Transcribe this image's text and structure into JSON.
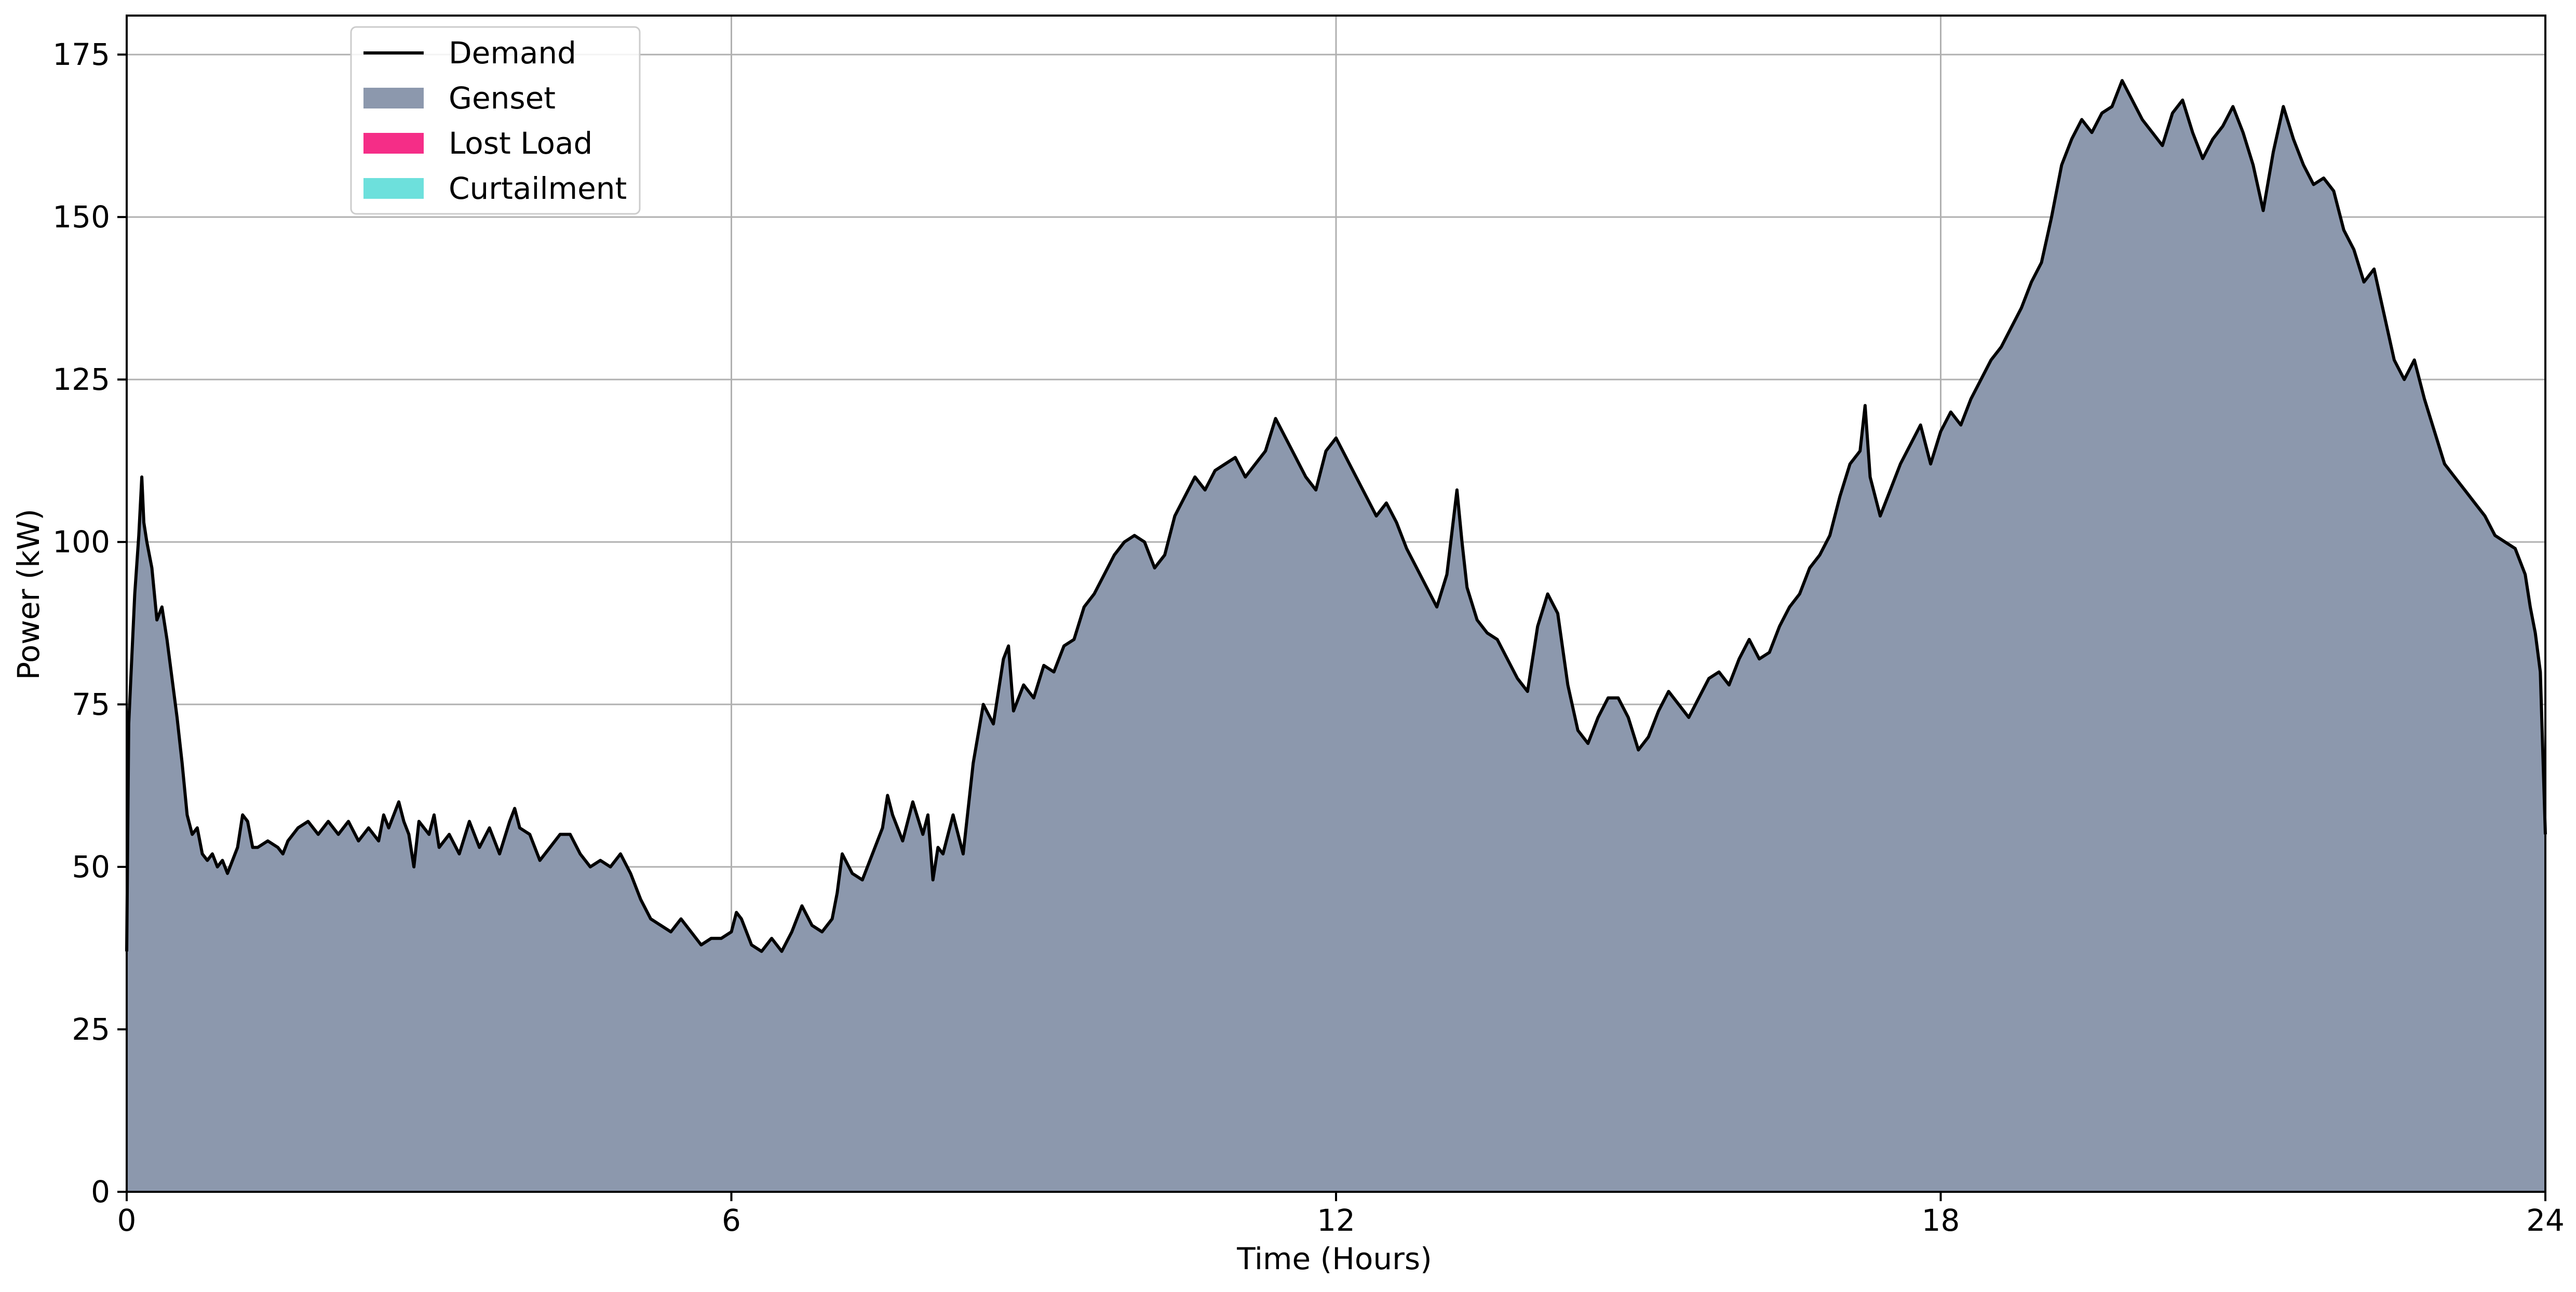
{
  "chart_data": {
    "type": "area",
    "title": "",
    "xlabel": "Time (Hours)",
    "ylabel": "Power (kW)",
    "xlim": [
      0,
      24
    ],
    "ylim": [
      0,
      181
    ],
    "x_ticks": [
      0,
      6,
      12,
      18,
      24
    ],
    "y_ticks": [
      0,
      25,
      50,
      75,
      100,
      125,
      150,
      175
    ],
    "grid": true,
    "legend_position": "upper-left",
    "series": [
      {
        "name": "Demand",
        "kind": "line",
        "color": "#000000"
      },
      {
        "name": "Genset",
        "kind": "area",
        "color": "#8c98ad"
      },
      {
        "name": "Lost Load",
        "kind": "area",
        "color": "#f52d87"
      },
      {
        "name": "Curtailment",
        "kind": "area",
        "color": "#6de0dc"
      }
    ],
    "demand_points": [
      [
        0,
        37
      ],
      [
        0.02,
        72
      ],
      [
        0.05,
        82
      ],
      [
        0.08,
        92
      ],
      [
        0.12,
        101
      ],
      [
        0.15,
        110
      ],
      [
        0.17,
        103
      ],
      [
        0.2,
        100
      ],
      [
        0.25,
        96
      ],
      [
        0.3,
        88
      ],
      [
        0.35,
        90
      ],
      [
        0.4,
        85
      ],
      [
        0.45,
        79
      ],
      [
        0.5,
        73
      ],
      [
        0.55,
        66
      ],
      [
        0.6,
        58
      ],
      [
        0.65,
        55
      ],
      [
        0.7,
        56
      ],
      [
        0.75,
        52
      ],
      [
        0.8,
        51
      ],
      [
        0.85,
        52
      ],
      [
        0.9,
        50
      ],
      [
        0.95,
        51
      ],
      [
        1.0,
        49
      ],
      [
        1.05,
        51
      ],
      [
        1.1,
        53
      ],
      [
        1.15,
        58
      ],
      [
        1.2,
        57
      ],
      [
        1.25,
        53
      ],
      [
        1.3,
        53
      ],
      [
        1.4,
        54
      ],
      [
        1.5,
        53
      ],
      [
        1.55,
        52
      ],
      [
        1.6,
        54
      ],
      [
        1.7,
        56
      ],
      [
        1.8,
        57
      ],
      [
        1.9,
        55
      ],
      [
        2.0,
        57
      ],
      [
        2.1,
        55
      ],
      [
        2.2,
        57
      ],
      [
        2.3,
        54
      ],
      [
        2.4,
        56
      ],
      [
        2.5,
        54
      ],
      [
        2.55,
        58
      ],
      [
        2.6,
        56
      ],
      [
        2.7,
        60
      ],
      [
        2.75,
        57
      ],
      [
        2.8,
        55
      ],
      [
        2.85,
        50
      ],
      [
        2.9,
        57
      ],
      [
        3.0,
        55
      ],
      [
        3.05,
        58
      ],
      [
        3.1,
        53
      ],
      [
        3.2,
        55
      ],
      [
        3.3,
        52
      ],
      [
        3.4,
        57
      ],
      [
        3.5,
        53
      ],
      [
        3.6,
        56
      ],
      [
        3.7,
        52
      ],
      [
        3.8,
        57
      ],
      [
        3.85,
        59
      ],
      [
        3.9,
        56
      ],
      [
        4.0,
        55
      ],
      [
        4.1,
        51
      ],
      [
        4.2,
        53
      ],
      [
        4.3,
        55
      ],
      [
        4.4,
        55
      ],
      [
        4.5,
        52
      ],
      [
        4.6,
        50
      ],
      [
        4.7,
        51
      ],
      [
        4.8,
        50
      ],
      [
        4.9,
        52
      ],
      [
        5.0,
        49
      ],
      [
        5.1,
        45
      ],
      [
        5.2,
        42
      ],
      [
        5.3,
        41
      ],
      [
        5.4,
        40
      ],
      [
        5.5,
        42
      ],
      [
        5.6,
        40
      ],
      [
        5.7,
        38
      ],
      [
        5.8,
        39
      ],
      [
        5.9,
        39
      ],
      [
        6.0,
        40
      ],
      [
        6.05,
        43
      ],
      [
        6.1,
        42
      ],
      [
        6.2,
        38
      ],
      [
        6.3,
        37
      ],
      [
        6.4,
        39
      ],
      [
        6.5,
        37
      ],
      [
        6.6,
        40
      ],
      [
        6.7,
        44
      ],
      [
        6.8,
        41
      ],
      [
        6.9,
        40
      ],
      [
        7.0,
        42
      ],
      [
        7.05,
        46
      ],
      [
        7.1,
        52
      ],
      [
        7.2,
        49
      ],
      [
        7.3,
        48
      ],
      [
        7.4,
        52
      ],
      [
        7.5,
        56
      ],
      [
        7.55,
        61
      ],
      [
        7.6,
        58
      ],
      [
        7.7,
        54
      ],
      [
        7.8,
        60
      ],
      [
        7.9,
        55
      ],
      [
        7.95,
        58
      ],
      [
        8.0,
        48
      ],
      [
        8.05,
        53
      ],
      [
        8.1,
        52
      ],
      [
        8.2,
        58
      ],
      [
        8.3,
        52
      ],
      [
        8.4,
        66
      ],
      [
        8.5,
        75
      ],
      [
        8.6,
        72
      ],
      [
        8.7,
        82
      ],
      [
        8.75,
        84
      ],
      [
        8.8,
        74
      ],
      [
        8.9,
        78
      ],
      [
        9.0,
        76
      ],
      [
        9.1,
        81
      ],
      [
        9.2,
        80
      ],
      [
        9.3,
        84
      ],
      [
        9.4,
        85
      ],
      [
        9.5,
        90
      ],
      [
        9.6,
        92
      ],
      [
        9.7,
        95
      ],
      [
        9.8,
        98
      ],
      [
        9.9,
        100
      ],
      [
        10.0,
        101
      ],
      [
        10.1,
        100
      ],
      [
        10.2,
        96
      ],
      [
        10.3,
        98
      ],
      [
        10.4,
        104
      ],
      [
        10.5,
        107
      ],
      [
        10.6,
        110
      ],
      [
        10.7,
        108
      ],
      [
        10.8,
        111
      ],
      [
        10.9,
        112
      ],
      [
        11.0,
        113
      ],
      [
        11.1,
        110
      ],
      [
        11.2,
        112
      ],
      [
        11.3,
        114
      ],
      [
        11.4,
        119
      ],
      [
        11.5,
        116
      ],
      [
        11.6,
        113
      ],
      [
        11.7,
        110
      ],
      [
        11.8,
        108
      ],
      [
        11.9,
        114
      ],
      [
        12.0,
        116
      ],
      [
        12.1,
        113
      ],
      [
        12.2,
        110
      ],
      [
        12.3,
        107
      ],
      [
        12.4,
        104
      ],
      [
        12.5,
        106
      ],
      [
        12.6,
        103
      ],
      [
        12.7,
        99
      ],
      [
        12.8,
        96
      ],
      [
        12.9,
        93
      ],
      [
        13.0,
        90
      ],
      [
        13.1,
        95
      ],
      [
        13.2,
        108
      ],
      [
        13.25,
        100
      ],
      [
        13.3,
        93
      ],
      [
        13.4,
        88
      ],
      [
        13.5,
        86
      ],
      [
        13.6,
        85
      ],
      [
        13.7,
        82
      ],
      [
        13.8,
        79
      ],
      [
        13.9,
        77
      ],
      [
        14.0,
        87
      ],
      [
        14.1,
        92
      ],
      [
        14.2,
        89
      ],
      [
        14.3,
        78
      ],
      [
        14.4,
        71
      ],
      [
        14.5,
        69
      ],
      [
        14.6,
        73
      ],
      [
        14.7,
        76
      ],
      [
        14.8,
        76
      ],
      [
        14.9,
        73
      ],
      [
        15.0,
        68
      ],
      [
        15.1,
        70
      ],
      [
        15.2,
        74
      ],
      [
        15.3,
        77
      ],
      [
        15.4,
        75
      ],
      [
        15.5,
        73
      ],
      [
        15.6,
        76
      ],
      [
        15.7,
        79
      ],
      [
        15.8,
        80
      ],
      [
        15.9,
        78
      ],
      [
        16.0,
        82
      ],
      [
        16.1,
        85
      ],
      [
        16.2,
        82
      ],
      [
        16.3,
        83
      ],
      [
        16.4,
        87
      ],
      [
        16.5,
        90
      ],
      [
        16.6,
        92
      ],
      [
        16.7,
        96
      ],
      [
        16.8,
        98
      ],
      [
        16.9,
        101
      ],
      [
        17.0,
        107
      ],
      [
        17.1,
        112
      ],
      [
        17.2,
        114
      ],
      [
        17.25,
        121
      ],
      [
        17.3,
        110
      ],
      [
        17.4,
        104
      ],
      [
        17.5,
        108
      ],
      [
        17.6,
        112
      ],
      [
        17.7,
        115
      ],
      [
        17.8,
        118
      ],
      [
        17.9,
        112
      ],
      [
        18.0,
        117
      ],
      [
        18.1,
        120
      ],
      [
        18.2,
        118
      ],
      [
        18.3,
        122
      ],
      [
        18.4,
        125
      ],
      [
        18.5,
        128
      ],
      [
        18.6,
        130
      ],
      [
        18.7,
        133
      ],
      [
        18.8,
        136
      ],
      [
        18.9,
        140
      ],
      [
        19.0,
        143
      ],
      [
        19.1,
        150
      ],
      [
        19.2,
        158
      ],
      [
        19.3,
        162
      ],
      [
        19.4,
        165
      ],
      [
        19.5,
        163
      ],
      [
        19.6,
        166
      ],
      [
        19.7,
        167
      ],
      [
        19.8,
        171
      ],
      [
        19.9,
        168
      ],
      [
        20.0,
        165
      ],
      [
        20.1,
        163
      ],
      [
        20.2,
        161
      ],
      [
        20.3,
        166
      ],
      [
        20.4,
        168
      ],
      [
        20.5,
        163
      ],
      [
        20.6,
        159
      ],
      [
        20.7,
        162
      ],
      [
        20.8,
        164
      ],
      [
        20.9,
        167
      ],
      [
        21.0,
        163
      ],
      [
        21.1,
        158
      ],
      [
        21.2,
        151
      ],
      [
        21.3,
        160
      ],
      [
        21.4,
        167
      ],
      [
        21.5,
        162
      ],
      [
        21.6,
        158
      ],
      [
        21.7,
        155
      ],
      [
        21.8,
        156
      ],
      [
        21.9,
        154
      ],
      [
        22.0,
        148
      ],
      [
        22.1,
        145
      ],
      [
        22.2,
        140
      ],
      [
        22.3,
        142
      ],
      [
        22.4,
        135
      ],
      [
        22.5,
        128
      ],
      [
        22.6,
        125
      ],
      [
        22.7,
        128
      ],
      [
        22.8,
        122
      ],
      [
        22.9,
        117
      ],
      [
        23.0,
        112
      ],
      [
        23.1,
        110
      ],
      [
        23.2,
        108
      ],
      [
        23.3,
        106
      ],
      [
        23.4,
        104
      ],
      [
        23.5,
        101
      ],
      [
        23.6,
        100
      ],
      [
        23.7,
        99
      ],
      [
        23.8,
        95
      ],
      [
        23.85,
        90
      ],
      [
        23.9,
        86
      ],
      [
        23.95,
        80
      ],
      [
        24.0,
        55
      ]
    ]
  }
}
